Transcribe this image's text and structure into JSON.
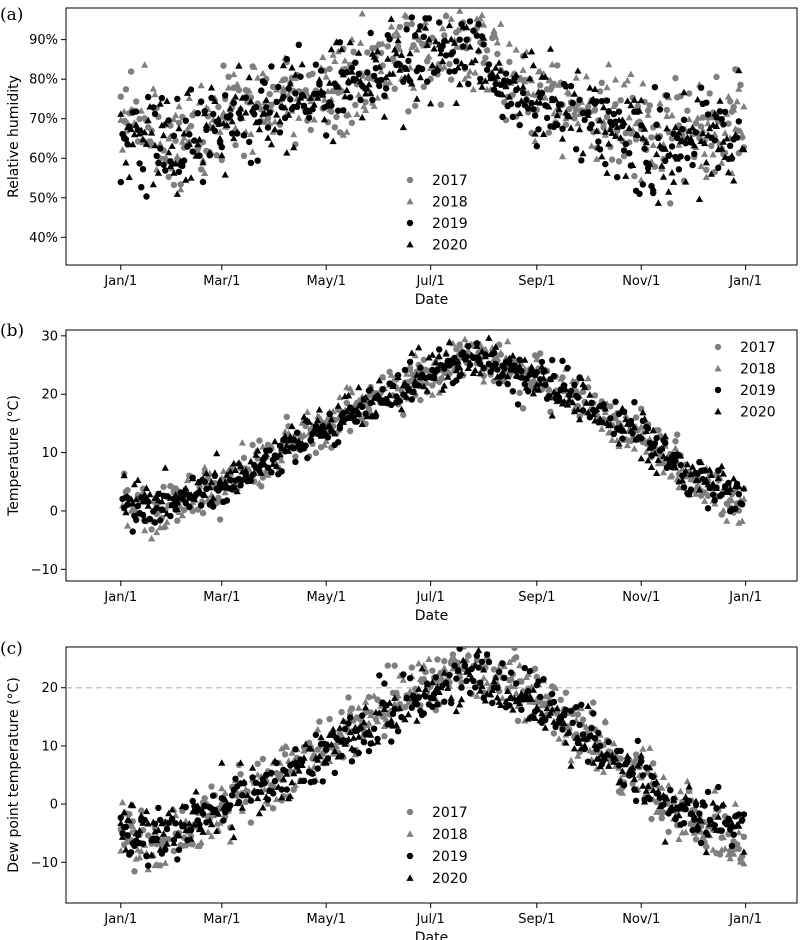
{
  "chart_data": [
    {
      "type": "scatter",
      "panel_label": "(a)",
      "xlabel": "Date",
      "ylabel": "Relative humidity",
      "x_unit": "day-of-year",
      "xlim": [
        "Dec 1",
        "Feb 1"
      ],
      "ylim": [
        0.33,
        0.98
      ],
      "xticks": [
        {
          "date": "Jan/1",
          "label": "Jan/1"
        },
        {
          "date": "Mar/1",
          "label": "Mar/1"
        },
        {
          "date": "May/1",
          "label": "May/1"
        },
        {
          "date": "Jul/1",
          "label": "Jul/1"
        },
        {
          "date": "Sep/1",
          "label": "Sep/1"
        },
        {
          "date": "Nov/1",
          "label": "Nov/1"
        },
        {
          "date": "Jan/1",
          "label": "Jan/1"
        }
      ],
      "yticks": [
        {
          "value": 0.4,
          "label": "40%"
        },
        {
          "value": 0.5,
          "label": "50%"
        },
        {
          "value": 0.6,
          "label": "60%"
        },
        {
          "value": 0.7,
          "label": "70%"
        },
        {
          "value": 0.8,
          "label": "80%"
        },
        {
          "value": 0.9,
          "label": "90%"
        }
      ],
      "legend_position": "lower-center",
      "grid": false,
      "series": [
        {
          "name": "2017",
          "marker": "circle",
          "color": "#7f7f7f",
          "trend": [
            [
              1,
              0.7
            ],
            [
              32,
              0.63
            ],
            [
              60,
              0.69
            ],
            [
              91,
              0.74
            ],
            [
              121,
              0.77
            ],
            [
              152,
              0.82
            ],
            [
              182,
              0.88
            ],
            [
              200,
              0.9
            ],
            [
              213,
              0.87
            ],
            [
              232,
              0.78
            ],
            [
              244,
              0.76
            ],
            [
              274,
              0.7
            ],
            [
              305,
              0.67
            ],
            [
              335,
              0.66
            ],
            [
              365,
              0.67
            ]
          ],
          "spread": 0.13
        },
        {
          "name": "2018",
          "marker": "triangle",
          "color": "#7f7f7f",
          "trend": [
            [
              1,
              0.68
            ],
            [
              32,
              0.64
            ],
            [
              60,
              0.71
            ],
            [
              91,
              0.76
            ],
            [
              121,
              0.78
            ],
            [
              152,
              0.83
            ],
            [
              182,
              0.88
            ],
            [
              200,
              0.89
            ],
            [
              213,
              0.87
            ],
            [
              232,
              0.8
            ],
            [
              244,
              0.77
            ],
            [
              274,
              0.71
            ],
            [
              305,
              0.68
            ],
            [
              335,
              0.65
            ],
            [
              365,
              0.66
            ]
          ],
          "spread": 0.13
        },
        {
          "name": "2019",
          "marker": "circle",
          "color": "#000000",
          "trend": [
            [
              1,
              0.68
            ],
            [
              32,
              0.62
            ],
            [
              60,
              0.68
            ],
            [
              91,
              0.73
            ],
            [
              121,
              0.77
            ],
            [
              152,
              0.82
            ],
            [
              182,
              0.88
            ],
            [
              200,
              0.9
            ],
            [
              213,
              0.86
            ],
            [
              232,
              0.76
            ],
            [
              244,
              0.74
            ],
            [
              274,
              0.69
            ],
            [
              305,
              0.65
            ],
            [
              335,
              0.64
            ],
            [
              365,
              0.66
            ]
          ],
          "spread": 0.13
        },
        {
          "name": "2020",
          "marker": "triangle",
          "color": "#000000",
          "trend": [
            [
              1,
              0.66
            ],
            [
              32,
              0.61
            ],
            [
              60,
              0.69
            ],
            [
              91,
              0.73
            ],
            [
              121,
              0.76
            ],
            [
              152,
              0.82
            ],
            [
              182,
              0.87
            ],
            [
              200,
              0.89
            ],
            [
              213,
              0.86
            ],
            [
              232,
              0.78
            ],
            [
              244,
              0.75
            ],
            [
              274,
              0.69
            ],
            [
              305,
              0.64
            ],
            [
              335,
              0.63
            ],
            [
              365,
              0.65
            ]
          ],
          "spread": 0.13
        }
      ]
    },
    {
      "type": "scatter",
      "panel_label": "(b)",
      "xlabel": "Date",
      "ylabel": "Temperature (°C)",
      "x_unit": "day-of-year",
      "xlim": [
        "Dec 1",
        "Feb 1"
      ],
      "ylim": [
        -12,
        31
      ],
      "xticks": [
        {
          "date": "Jan/1",
          "label": "Jan/1"
        },
        {
          "date": "Mar/1",
          "label": "Mar/1"
        },
        {
          "date": "May/1",
          "label": "May/1"
        },
        {
          "date": "Jul/1",
          "label": "Jul/1"
        },
        {
          "date": "Sep/1",
          "label": "Sep/1"
        },
        {
          "date": "Nov/1",
          "label": "Nov/1"
        },
        {
          "date": "Jan/1",
          "label": "Jan/1"
        }
      ],
      "yticks": [
        {
          "value": -10,
          "label": "−10"
        },
        {
          "value": 0,
          "label": "0"
        },
        {
          "value": 10,
          "label": "10"
        },
        {
          "value": 20,
          "label": "20"
        },
        {
          "value": 30,
          "label": "30"
        }
      ],
      "legend_position": "top-right",
      "grid": false,
      "series": [
        {
          "name": "2017",
          "marker": "circle",
          "color": "#7f7f7f",
          "trend": [
            [
              1,
              2
            ],
            [
              20,
              0
            ],
            [
              32,
              1
            ],
            [
              60,
              4
            ],
            [
              91,
              9
            ],
            [
              121,
              14
            ],
            [
              152,
              19
            ],
            [
              182,
              23
            ],
            [
              205,
              27
            ],
            [
              213,
              26
            ],
            [
              244,
              23
            ],
            [
              274,
              18
            ],
            [
              305,
              13
            ],
            [
              335,
              6
            ],
            [
              365,
              1
            ]
          ],
          "spread": 4.5
        },
        {
          "name": "2018",
          "marker": "triangle",
          "color": "#7f7f7f",
          "trend": [
            [
              1,
              2
            ],
            [
              20,
              -2
            ],
            [
              32,
              1
            ],
            [
              60,
              5
            ],
            [
              91,
              10
            ],
            [
              121,
              15
            ],
            [
              152,
              20
            ],
            [
              182,
              24
            ],
            [
              205,
              28
            ],
            [
              213,
              27
            ],
            [
              244,
              23
            ],
            [
              274,
              18
            ],
            [
              305,
              12
            ],
            [
              335,
              5
            ],
            [
              365,
              0
            ]
          ],
          "spread": 4.5
        },
        {
          "name": "2019",
          "marker": "circle",
          "color": "#000000",
          "trend": [
            [
              1,
              1
            ],
            [
              20,
              0
            ],
            [
              32,
              2
            ],
            [
              60,
              4
            ],
            [
              91,
              9
            ],
            [
              121,
              14
            ],
            [
              152,
              19
            ],
            [
              182,
              23
            ],
            [
              205,
              27
            ],
            [
              213,
              26
            ],
            [
              244,
              23
            ],
            [
              274,
              19
            ],
            [
              305,
              13
            ],
            [
              335,
              6
            ],
            [
              365,
              2
            ]
          ],
          "spread": 4.0
        },
        {
          "name": "2020",
          "marker": "triangle",
          "color": "#000000",
          "trend": [
            [
              1,
              3
            ],
            [
              20,
              2
            ],
            [
              32,
              3
            ],
            [
              60,
              5
            ],
            [
              91,
              10
            ],
            [
              121,
              15
            ],
            [
              152,
              19
            ],
            [
              182,
              24
            ],
            [
              205,
              27
            ],
            [
              213,
              26
            ],
            [
              244,
              22
            ],
            [
              274,
              18
            ],
            [
              305,
              13
            ],
            [
              335,
              6
            ],
            [
              365,
              3
            ]
          ],
          "spread": 4.0
        }
      ]
    },
    {
      "type": "scatter",
      "panel_label": "(c)",
      "xlabel": "Date",
      "ylabel": "Dew point temperature (°C)",
      "x_unit": "day-of-year",
      "xlim": [
        "Dec 1",
        "Feb 1"
      ],
      "ylim": [
        -17,
        27
      ],
      "reference_line": {
        "y": 20,
        "style": "dashed",
        "color": "#bfbfbf"
      },
      "xticks": [
        {
          "date": "Jan/1",
          "label": "Jan/1"
        },
        {
          "date": "Mar/1",
          "label": "Mar/1"
        },
        {
          "date": "May/1",
          "label": "May/1"
        },
        {
          "date": "Jul/1",
          "label": "Jul/1"
        },
        {
          "date": "Sep/1",
          "label": "Sep/1"
        },
        {
          "date": "Nov/1",
          "label": "Nov/1"
        },
        {
          "date": "Jan/1",
          "label": "Jan/1"
        }
      ],
      "yticks": [
        {
          "value": -10,
          "label": "−10"
        },
        {
          "value": 0,
          "label": "0"
        },
        {
          "value": 10,
          "label": "10"
        },
        {
          "value": 20,
          "label": "20"
        }
      ],
      "legend_position": "lower-center",
      "grid": false,
      "series": [
        {
          "name": "2017",
          "marker": "circle",
          "color": "#7f7f7f",
          "trend": [
            [
              1,
              -4
            ],
            [
              20,
              -7
            ],
            [
              32,
              -5
            ],
            [
              60,
              -1
            ],
            [
              91,
              4
            ],
            [
              121,
              10
            ],
            [
              152,
              16
            ],
            [
              182,
              21
            ],
            [
              205,
              24
            ],
            [
              213,
              23
            ],
            [
              244,
              19
            ],
            [
              274,
              11
            ],
            [
              305,
              4
            ],
            [
              335,
              -3
            ],
            [
              365,
              -7
            ]
          ],
          "spread": 5.5
        },
        {
          "name": "2018",
          "marker": "triangle",
          "color": "#7f7f7f",
          "trend": [
            [
              1,
              -4
            ],
            [
              20,
              -9
            ],
            [
              32,
              -5
            ],
            [
              60,
              -1
            ],
            [
              91,
              5
            ],
            [
              121,
              10
            ],
            [
              152,
              16
            ],
            [
              182,
              21
            ],
            [
              205,
              24
            ],
            [
              213,
              23
            ],
            [
              244,
              19
            ],
            [
              274,
              12
            ],
            [
              305,
              4
            ],
            [
              335,
              -3
            ],
            [
              365,
              -7
            ]
          ],
          "spread": 5.5
        },
        {
          "name": "2019",
          "marker": "circle",
          "color": "#000000",
          "trend": [
            [
              1,
              -5
            ],
            [
              20,
              -6
            ],
            [
              32,
              -4
            ],
            [
              60,
              -1
            ],
            [
              91,
              4
            ],
            [
              121,
              9
            ],
            [
              152,
              15
            ],
            [
              182,
              19
            ],
            [
              205,
              22
            ],
            [
              213,
              22
            ],
            [
              244,
              18
            ],
            [
              274,
              11
            ],
            [
              305,
              5
            ],
            [
              335,
              -2
            ],
            [
              365,
              -4
            ]
          ],
          "spread": 5.0
        },
        {
          "name": "2020",
          "marker": "triangle",
          "color": "#000000",
          "trend": [
            [
              1,
              -3
            ],
            [
              20,
              -5
            ],
            [
              32,
              -4
            ],
            [
              60,
              -1
            ],
            [
              91,
              4
            ],
            [
              121,
              10
            ],
            [
              152,
              15
            ],
            [
              182,
              19
            ],
            [
              205,
              21
            ],
            [
              213,
              21
            ],
            [
              244,
              17
            ],
            [
              274,
              10
            ],
            [
              305,
              4
            ],
            [
              335,
              -2
            ],
            [
              365,
              -4
            ]
          ],
          "spread": 5.0
        }
      ]
    }
  ]
}
